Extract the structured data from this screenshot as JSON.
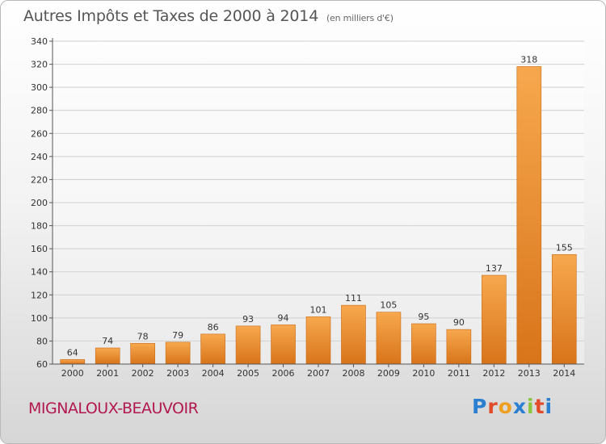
{
  "header": {
    "title": "Autres Impôts et Taxes de 2000 à 2014",
    "subtitle": "(en milliers d'€)"
  },
  "footer": {
    "town": "MIGNALOUX-BEAUVOIR",
    "brand": {
      "letters": [
        "P",
        "r",
        "o",
        "x",
        "i",
        "t",
        "i"
      ],
      "colors": [
        "#2a7fd0",
        "#e14b2a",
        "#f0a020",
        "#2a7fd0",
        "#8cc53f",
        "#e14b2a",
        "#2a7fd0"
      ]
    }
  },
  "chart_data": {
    "type": "bar",
    "categories": [
      "2000",
      "2001",
      "2002",
      "2003",
      "2004",
      "2005",
      "2006",
      "2007",
      "2008",
      "2009",
      "2010",
      "2011",
      "2012",
      "2013",
      "2014"
    ],
    "values": [
      64,
      74,
      78,
      79,
      86,
      93,
      94,
      101,
      111,
      105,
      95,
      90,
      137,
      318,
      155
    ],
    "title": "Autres Impôts et Taxes de 2000 à 2014",
    "xlabel": "",
    "ylabel": "",
    "ylim": [
      60,
      340
    ],
    "yticks": [
      60,
      80,
      100,
      120,
      140,
      160,
      180,
      200,
      220,
      240,
      260,
      280,
      300,
      320,
      340
    ],
    "grid": true,
    "colors": {
      "bar_light": "#f7a84e",
      "bar_dark": "#d8741a",
      "grid": "#d0d0d0"
    }
  }
}
